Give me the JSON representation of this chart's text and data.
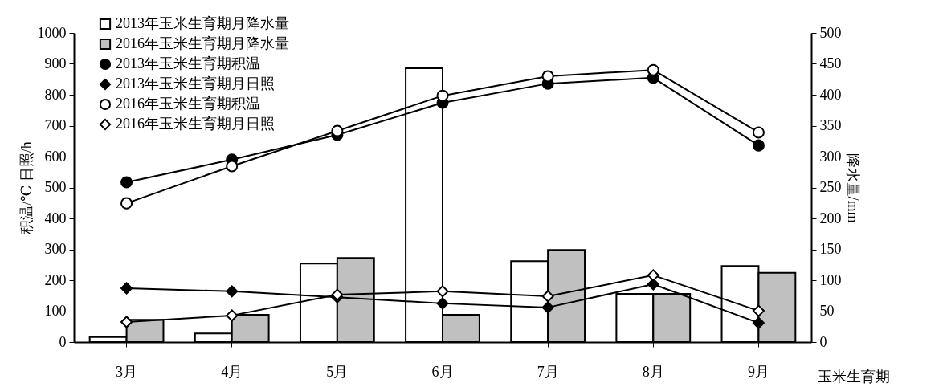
{
  "chart_data": {
    "type": "line",
    "categories": [
      "3月",
      "4月",
      "5月",
      "6月",
      "7月",
      "8月",
      "9月"
    ],
    "xlabel": "玉米生育期",
    "ylabel": "积温/℃      日照/h",
    "y2label": "降水量/mm",
    "ylim": [
      0,
      1000
    ],
    "yticks": [
      0,
      100,
      200,
      300,
      400,
      500,
      600,
      700,
      800,
      900,
      {
        "value": 1000,
        "label": "1000"
      }
    ],
    "y2lim": [
      0,
      500
    ],
    "y2ticks": [
      0,
      50,
      100,
      150,
      200,
      250,
      300,
      350,
      400,
      450,
      500
    ],
    "grid": false,
    "legend": "top left",
    "series": [
      {
        "name": "2013年玉米生育期月降水量",
        "type": "bar",
        "axis": "y2",
        "color": "#ffffff",
        "values": [
          8,
          14,
          127,
          443,
          131,
          78,
          123
        ]
      },
      {
        "name": "2016年玉米生育期月降水量",
        "type": "bar",
        "axis": "y2",
        "color": "#c0c0c0",
        "values": [
          36,
          44,
          136,
          44,
          149,
          78,
          112
        ]
      },
      {
        "name": "2013年玉米生育期积温",
        "marker": "circle",
        "color": "#000000",
        "values": [
          517,
          590,
          670,
          774,
          836,
          855,
          636
        ]
      },
      {
        "name": "2013年玉米生育期月日照",
        "marker": "diamond",
        "color": "#000000",
        "values": [
          174,
          164,
          145,
          125,
          112,
          187,
          62
        ]
      },
      {
        "name": "2016年玉米生育期积温",
        "marker": "circle",
        "color": "#ffffff",
        "values": [
          449,
          569,
          683,
          797,
          860,
          880,
          678
        ]
      },
      {
        "name": "2016年玉米生育期月日照",
        "marker": "diamond",
        "color": "#ffffff",
        "values": [
          65,
          86,
          153,
          164,
          148,
          216,
          101
        ]
      }
    ]
  }
}
